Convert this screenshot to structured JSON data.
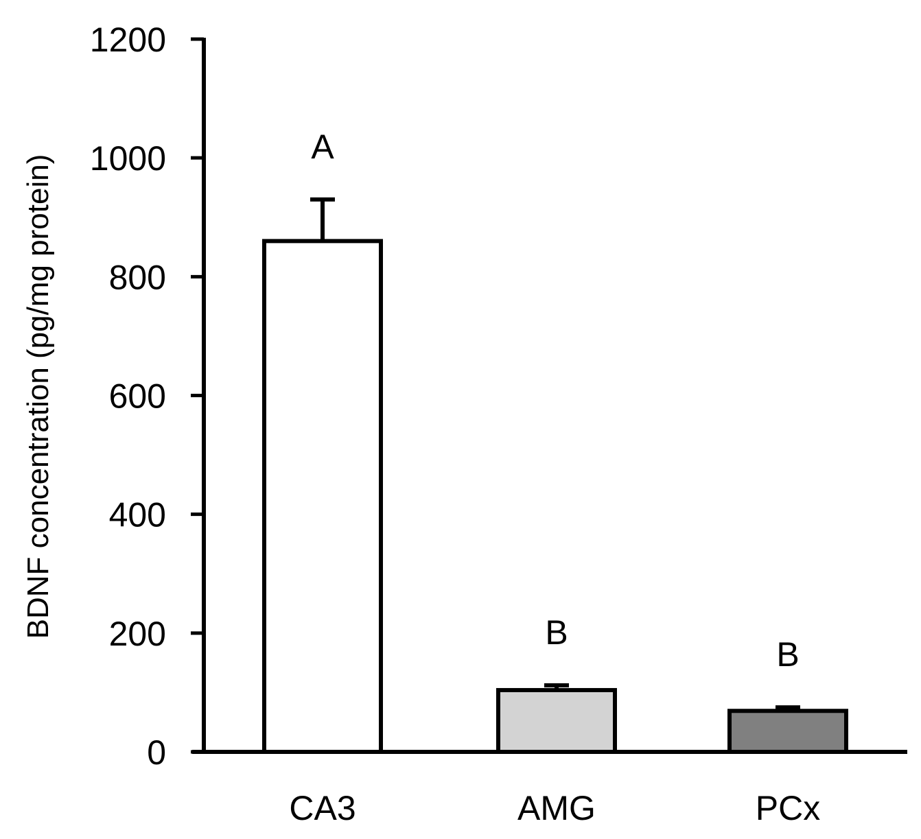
{
  "chart_data": {
    "type": "bar",
    "title": "",
    "xlabel": "",
    "ylabel": "BDNF concentration (pg/mg protein)",
    "ylim": [
      0,
      1200
    ],
    "yticks": [
      0,
      200,
      400,
      600,
      800,
      1000,
      1200
    ],
    "ytick_labels": [
      "0",
      "200",
      "400",
      "600",
      "800",
      "1000",
      "1200"
    ],
    "categories": [
      "CA3",
      "AMG",
      "PCx"
    ],
    "values": [
      860,
      104,
      69
    ],
    "errors": [
      70,
      8,
      6
    ],
    "significance_labels": [
      "A",
      "B",
      "B"
    ],
    "bar_colors": [
      "#ffffff",
      "#d3d3d3",
      "#808080"
    ],
    "grid": false,
    "legend": "none"
  }
}
